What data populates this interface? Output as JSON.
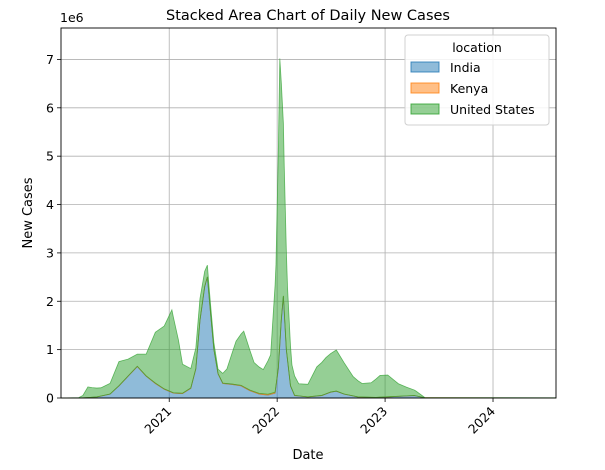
{
  "chart_data": {
    "type": "area",
    "stacked": true,
    "title": "Stacked Area Chart of Daily New Cases",
    "xlabel": "Date",
    "ylabel": "New Cases",
    "y_offset_label": "1e6",
    "x_range": [
      "2020-01-01",
      "2024-08-01"
    ],
    "ylim": [
      0,
      7.65
    ],
    "y_ticks": [
      0,
      1,
      2,
      3,
      4,
      5,
      6,
      7
    ],
    "x_ticks": [
      {
        "label": "2021",
        "date": "2021-01-01"
      },
      {
        "label": "2022",
        "date": "2022-01-01"
      },
      {
        "label": "2023",
        "date": "2023-01-01"
      },
      {
        "label": "2024",
        "date": "2024-01-01"
      }
    ],
    "grid": true,
    "legend": {
      "title": "location",
      "position": "top-right"
    },
    "series": [
      {
        "name": "India",
        "color": "#1f77b4",
        "points": [
          [
            "2020-01-01",
            0
          ],
          [
            "2020-03-15",
            0.002
          ],
          [
            "2020-05-01",
            0.02
          ],
          [
            "2020-06-15",
            0.08
          ],
          [
            "2020-07-15",
            0.25
          ],
          [
            "2020-08-15",
            0.45
          ],
          [
            "2020-09-15",
            0.65
          ],
          [
            "2020-10-15",
            0.45
          ],
          [
            "2020-11-15",
            0.3
          ],
          [
            "2020-12-15",
            0.18
          ],
          [
            "2021-01-15",
            0.1
          ],
          [
            "2021-02-15",
            0.09
          ],
          [
            "2021-03-15",
            0.2
          ],
          [
            "2021-04-01",
            0.6
          ],
          [
            "2021-04-15",
            1.6
          ],
          [
            "2021-05-01",
            2.3
          ],
          [
            "2021-05-10",
            2.5
          ],
          [
            "2021-05-20",
            1.8
          ],
          [
            "2021-06-01",
            1.0
          ],
          [
            "2021-06-15",
            0.5
          ],
          [
            "2021-07-01",
            0.3
          ],
          [
            "2021-08-01",
            0.28
          ],
          [
            "2021-09-01",
            0.25
          ],
          [
            "2021-10-01",
            0.15
          ],
          [
            "2021-11-01",
            0.08
          ],
          [
            "2021-12-01",
            0.06
          ],
          [
            "2021-12-25",
            0.1
          ],
          [
            "2022-01-05",
            0.6
          ],
          [
            "2022-01-15",
            1.6
          ],
          [
            "2022-01-22",
            2.1
          ],
          [
            "2022-02-01",
            1.0
          ],
          [
            "2022-02-15",
            0.25
          ],
          [
            "2022-03-01",
            0.05
          ],
          [
            "2022-04-15",
            0.02
          ],
          [
            "2022-06-01",
            0.05
          ],
          [
            "2022-07-01",
            0.12
          ],
          [
            "2022-07-20",
            0.14
          ],
          [
            "2022-08-15",
            0.08
          ],
          [
            "2022-10-01",
            0.02
          ],
          [
            "2022-12-01",
            0.01
          ],
          [
            "2023-04-10",
            0.05
          ],
          [
            "2023-05-15",
            0.005
          ],
          [
            "2024-08-01",
            0
          ]
        ]
      },
      {
        "name": "Kenya",
        "color": "#ff7f0e",
        "points": [
          [
            "2020-01-01",
            0
          ],
          [
            "2020-04-01",
            0.001
          ],
          [
            "2020-07-01",
            0.003
          ],
          [
            "2020-11-15",
            0.008
          ],
          [
            "2021-03-25",
            0.008
          ],
          [
            "2021-05-01",
            0.005
          ],
          [
            "2021-08-01",
            0.008
          ],
          [
            "2021-12-25",
            0.02
          ],
          [
            "2022-01-10",
            0.02
          ],
          [
            "2022-02-01",
            0.004
          ],
          [
            "2022-07-01",
            0.003
          ],
          [
            "2023-05-15",
            0.001
          ],
          [
            "2024-08-01",
            0
          ]
        ]
      },
      {
        "name": "United States",
        "color": "#2ca02c",
        "points": [
          [
            "2020-01-01",
            0
          ],
          [
            "2020-03-01",
            0.005
          ],
          [
            "2020-03-15",
            0.05
          ],
          [
            "2020-04-01",
            0.22
          ],
          [
            "2020-04-15",
            0.2
          ],
          [
            "2020-05-15",
            0.17
          ],
          [
            "2020-06-15",
            0.22
          ],
          [
            "2020-07-15",
            0.5
          ],
          [
            "2020-08-15",
            0.35
          ],
          [
            "2020-09-15",
            0.25
          ],
          [
            "2020-10-15",
            0.45
          ],
          [
            "2020-11-15",
            1.05
          ],
          [
            "2020-12-15",
            1.3
          ],
          [
            "2021-01-10",
            1.7
          ],
          [
            "2021-02-01",
            1.1
          ],
          [
            "2021-02-15",
            0.6
          ],
          [
            "2021-03-15",
            0.4
          ],
          [
            "2021-04-15",
            0.45
          ],
          [
            "2021-05-15",
            0.2
          ],
          [
            "2021-06-15",
            0.09
          ],
          [
            "2021-07-15",
            0.3
          ],
          [
            "2021-08-15",
            0.9
          ],
          [
            "2021-09-10",
            1.15
          ],
          [
            "2021-10-15",
            0.6
          ],
          [
            "2021-11-15",
            0.5
          ],
          [
            "2021-12-10",
            0.8
          ],
          [
            "2021-12-28",
            2.5
          ],
          [
            "2022-01-05",
            4.5
          ],
          [
            "2022-01-10",
            5.9
          ],
          [
            "2022-01-15",
            4.9
          ],
          [
            "2022-01-25",
            3.0
          ],
          [
            "2022-02-05",
            1.5
          ],
          [
            "2022-02-20",
            0.5
          ],
          [
            "2022-03-15",
            0.25
          ],
          [
            "2022-04-15",
            0.26
          ],
          [
            "2022-05-15",
            0.6
          ],
          [
            "2022-06-15",
            0.75
          ],
          [
            "2022-07-20",
            0.85
          ],
          [
            "2022-08-15",
            0.65
          ],
          [
            "2022-09-15",
            0.4
          ],
          [
            "2022-10-15",
            0.28
          ],
          [
            "2022-11-15",
            0.3
          ],
          [
            "2022-12-15",
            0.45
          ],
          [
            "2023-01-10",
            0.45
          ],
          [
            "2023-02-15",
            0.26
          ],
          [
            "2023-03-15",
            0.18
          ],
          [
            "2023-04-15",
            0.1
          ],
          [
            "2023-05-15",
            0.005
          ],
          [
            "2024-08-01",
            0.004
          ]
        ]
      }
    ]
  }
}
